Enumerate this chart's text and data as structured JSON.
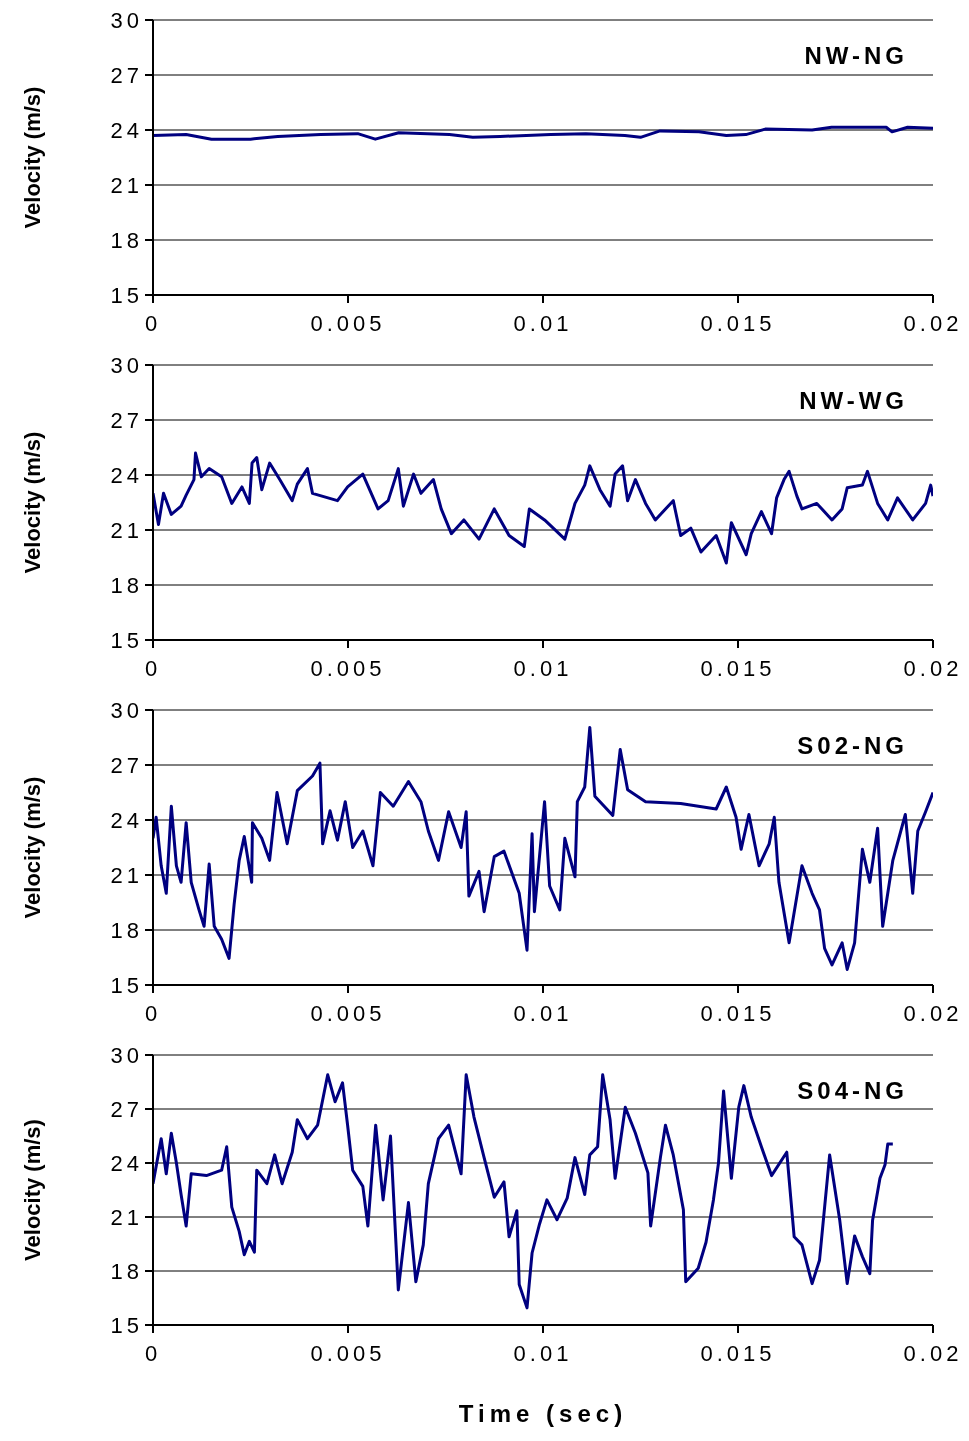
{
  "chart_data": [
    {
      "type": "line",
      "annotations": [
        "NW-NG"
      ],
      "ylabel": "Velocity (m/s)",
      "xlim": [
        0,
        0.02
      ],
      "xticks": [
        0,
        0.005,
        0.01,
        0.015,
        0.02
      ],
      "ylim": [
        15,
        30
      ],
      "yticks": [
        15,
        18,
        21,
        24,
        27,
        30
      ],
      "grid": "y",
      "legend": false,
      "series": [
        {
          "color": "#000080",
          "x": [
            0,
            0.00085,
            0.0015,
            0.0025,
            0.0032,
            0.0043,
            0.00525,
            0.0057,
            0.0063,
            0.0076,
            0.0082,
            0.0089,
            0.0102,
            0.0111,
            0.0121,
            0.0125,
            0.013,
            0.014,
            0.0147,
            0.0152,
            0.0157,
            0.0169,
            0.0174,
            0.0188,
            0.01895,
            0.01935,
            0.02
          ],
          "values": [
            23.7,
            23.75,
            23.5,
            23.5,
            23.65,
            23.75,
            23.8,
            23.5,
            23.85,
            23.75,
            23.6,
            23.65,
            23.75,
            23.8,
            23.7,
            23.6,
            23.95,
            23.9,
            23.7,
            23.75,
            24.05,
            24.0,
            24.15,
            24.15,
            23.9,
            24.15,
            24.1
          ]
        }
      ]
    },
    {
      "type": "line",
      "annotations": [
        "NW-WG"
      ],
      "ylabel": "Velocity (m/s)",
      "xlim": [
        0,
        0.02
      ],
      "xticks": [
        0,
        0.005,
        0.01,
        0.015,
        0.02
      ],
      "ylim": [
        15,
        30
      ],
      "yticks": [
        15,
        18,
        21,
        24,
        27,
        30
      ],
      "grid": "y",
      "legend": false,
      "series": [
        {
          "color": "#000080",
          "x": [
            0,
            0.00014,
            0.00027,
            0.00047,
            0.00072,
            0.00085,
            0.00105,
            0.00109,
            0.00124,
            0.00144,
            0.00176,
            0.00202,
            0.00228,
            0.00247,
            0.00254,
            0.00266,
            0.00279,
            0.00299,
            0.00325,
            0.00357,
            0.0037,
            0.00396,
            0.00409,
            0.00473,
            0.00499,
            0.00538,
            0.00577,
            0.00603,
            0.00629,
            0.00642,
            0.00668,
            0.00687,
            0.00719,
            0.00739,
            0.00765,
            0.00797,
            0.00836,
            0.00875,
            0.00913,
            0.00952,
            0.00965,
            0.01004,
            0.01056,
            0.01082,
            0.01107,
            0.0112,
            0.01146,
            0.01172,
            0.01185,
            0.01204,
            0.01217,
            0.01237,
            0.01263,
            0.01288,
            0.01334,
            0.01353,
            0.01379,
            0.01405,
            0.01444,
            0.0147,
            0.01483,
            0.01521,
            0.01534,
            0.0156,
            0.01586,
            0.01599,
            0.01618,
            0.01631,
            0.01651,
            0.01664,
            0.01702,
            0.01741,
            0.01767,
            0.0178,
            0.01819,
            0.01832,
            0.01858,
            0.01884,
            0.01909,
            0.01948,
            0.01981,
            0.01994,
            0.02
          ],
          "values": [
            23.0,
            21.3,
            23.0,
            21.85,
            22.3,
            22.9,
            23.75,
            25.2,
            23.9,
            24.35,
            23.9,
            22.45,
            23.35,
            22.45,
            24.65,
            24.95,
            23.2,
            24.65,
            23.75,
            22.6,
            23.5,
            24.35,
            23.0,
            22.6,
            23.35,
            24.05,
            22.15,
            22.6,
            24.35,
            22.3,
            24.05,
            23.0,
            23.75,
            22.15,
            20.8,
            21.55,
            20.5,
            22.15,
            20.7,
            20.1,
            22.15,
            21.55,
            20.5,
            22.45,
            23.45,
            24.5,
            23.2,
            22.3,
            24.05,
            24.5,
            22.6,
            23.75,
            22.45,
            21.55,
            22.6,
            20.7,
            21.1,
            19.8,
            20.7,
            19.2,
            21.4,
            19.65,
            20.8,
            22.0,
            20.8,
            22.75,
            23.75,
            24.2,
            22.85,
            22.15,
            22.45,
            21.55,
            22.15,
            23.3,
            23.45,
            24.2,
            22.45,
            21.55,
            22.75,
            21.55,
            22.45,
            23.45,
            22.85
          ]
        }
      ]
    },
    {
      "type": "line",
      "annotations": [
        "S02-NG"
      ],
      "ylabel": "Velocity (m/s)",
      "xlim": [
        0,
        0.02
      ],
      "xticks": [
        0,
        0.005,
        0.01,
        0.015,
        0.02
      ],
      "ylim": [
        15,
        30
      ],
      "yticks": [
        15,
        18,
        21,
        24,
        27,
        30
      ],
      "grid": "y",
      "legend": false,
      "series": [
        {
          "color": "#000080",
          "x": [
            0,
            8e-05,
            0.00021,
            0.00034,
            0.00047,
            0.0006,
            0.00072,
            0.00085,
            0.00098,
            0.00118,
            0.00131,
            0.00144,
            0.00157,
            0.00176,
            0.00195,
            0.00208,
            0.00221,
            0.00234,
            0.00253,
            0.00255,
            0.00279,
            0.00299,
            0.00318,
            0.00344,
            0.0037,
            0.00409,
            0.00428,
            0.00435,
            0.00454,
            0.00473,
            0.00493,
            0.00512,
            0.00538,
            0.00564,
            0.00583,
            0.00616,
            0.00655,
            0.00687,
            0.00706,
            0.00732,
            0.00758,
            0.0079,
            0.00803,
            0.0081,
            0.00836,
            0.00849,
            0.00875,
            0.009,
            0.00939,
            0.00959,
            0.00972,
            0.00978,
            0.01004,
            0.01017,
            0.01043,
            0.01056,
            0.01082,
            0.01088,
            0.01107,
            0.0112,
            0.01133,
            0.01179,
            0.01198,
            0.01217,
            0.01263,
            0.01353,
            0.01444,
            0.0147,
            0.01495,
            0.01508,
            0.01528,
            0.01554,
            0.0158,
            0.01593,
            0.01605,
            0.01631,
            0.01664,
            0.0169,
            0.01709,
            0.01722,
            0.01741,
            0.01767,
            0.0178,
            0.01799,
            0.01819,
            0.01838,
            0.01858,
            0.01871,
            0.01897,
            0.01929,
            0.01948,
            0.01961,
            0.01981,
            0.02
          ],
          "values": [
            23.0,
            24.15,
            21.5,
            20.0,
            24.75,
            21.5,
            20.6,
            23.85,
            20.6,
            19.1,
            18.2,
            21.6,
            18.2,
            17.5,
            16.45,
            19.4,
            21.8,
            23.1,
            20.6,
            23.85,
            23.0,
            21.8,
            25.5,
            22.7,
            25.6,
            26.4,
            27.1,
            22.7,
            24.5,
            22.9,
            25.0,
            22.5,
            23.4,
            21.5,
            25.5,
            24.75,
            26.1,
            25.0,
            23.4,
            21.8,
            24.45,
            22.5,
            24.45,
            19.85,
            21.2,
            19.0,
            22.0,
            22.3,
            20.0,
            16.9,
            23.25,
            19.0,
            25.0,
            20.4,
            19.1,
            23.0,
            20.9,
            25.0,
            25.8,
            29.05,
            25.3,
            24.25,
            27.85,
            25.65,
            25.0,
            24.9,
            24.6,
            25.8,
            24.15,
            22.4,
            24.3,
            21.5,
            22.7,
            24.15,
            20.6,
            17.3,
            21.5,
            20.0,
            19.1,
            17.0,
            16.1,
            17.3,
            15.85,
            17.3,
            22.4,
            20.6,
            23.55,
            18.2,
            21.8,
            24.3,
            20.0,
            23.4,
            24.45,
            25.5
          ]
        }
      ]
    },
    {
      "type": "line",
      "annotations": [
        "S04-NG"
      ],
      "xlabel": "Time (sec)",
      "ylabel": "Velocity (m/s)",
      "xlim": [
        0,
        0.02
      ],
      "xticks": [
        0,
        0.005,
        0.01,
        0.015,
        0.02
      ],
      "ylim": [
        15,
        30
      ],
      "yticks": [
        15,
        18,
        21,
        24,
        27,
        30
      ],
      "grid": "y",
      "legend": false,
      "series": [
        {
          "color": "#000080",
          "x": [
            0,
            0.00021,
            0.00034,
            0.00047,
            0.0006,
            0.00072,
            0.00085,
            0.00098,
            0.00137,
            0.00176,
            0.00189,
            0.00202,
            0.00221,
            0.00234,
            0.00247,
            0.0026,
            0.00266,
            0.00292,
            0.00312,
            0.00331,
            0.00357,
            0.0037,
            0.00396,
            0.00422,
            0.00448,
            0.00467,
            0.00486,
            0.00499,
            0.00512,
            0.00538,
            0.00551,
            0.00571,
            0.0059,
            0.00609,
            0.00629,
            0.00655,
            0.00674,
            0.00693,
            0.00706,
            0.00732,
            0.00758,
            0.0079,
            0.00803,
            0.00823,
            0.00849,
            0.00875,
            0.009,
            0.00913,
            0.00933,
            0.00939,
            0.00959,
            0.00972,
            0.00991,
            0.0101,
            0.01036,
            0.01062,
            0.01082,
            0.01107,
            0.0112,
            0.0114,
            0.01153,
            0.01172,
            0.01185,
            0.01211,
            0.01237,
            0.01269,
            0.01276,
            0.01301,
            0.01314,
            0.01334,
            0.0136,
            0.01366,
            0.01398,
            0.01418,
            0.01437,
            0.0145,
            0.01463,
            0.01483,
            0.01502,
            0.01515,
            0.01534,
            0.0156,
            0.01586,
            0.01625,
            0.01644,
            0.01664,
            0.0169,
            0.01709,
            0.01735,
            0.01761,
            0.0178,
            0.01799,
            0.01819,
            0.01838,
            0.01845,
            0.01864,
            0.01877,
            0.01884,
            0.01897
          ],
          "values": [
            22.85,
            25.35,
            23.4,
            25.65,
            24.0,
            22.25,
            20.5,
            23.4,
            23.3,
            23.6,
            24.9,
            21.55,
            20.2,
            18.9,
            19.65,
            19.05,
            23.6,
            22.85,
            24.45,
            22.85,
            24.6,
            26.4,
            25.35,
            26.1,
            28.9,
            27.4,
            28.45,
            26.1,
            23.6,
            22.7,
            20.5,
            26.1,
            21.95,
            25.5,
            16.95,
            21.8,
            17.4,
            19.45,
            22.85,
            25.35,
            26.1,
            23.4,
            28.9,
            26.55,
            24.3,
            22.1,
            22.95,
            19.9,
            21.35,
            17.25,
            15.95,
            19.0,
            20.6,
            21.95,
            20.85,
            22.05,
            24.3,
            22.25,
            24.45,
            24.9,
            28.9,
            26.4,
            23.15,
            27.1,
            25.65,
            23.45,
            20.5,
            24.3,
            26.1,
            24.45,
            21.4,
            17.4,
            18.15,
            19.6,
            21.95,
            24.0,
            28.0,
            23.15,
            27.1,
            28.3,
            26.55,
            24.9,
            23.3,
            24.6,
            19.9,
            19.45,
            17.3,
            18.6,
            24.45,
            20.8,
            17.3,
            19.95,
            18.8,
            17.85,
            20.8,
            23.15,
            23.9,
            25.05,
            25.05
          ]
        }
      ]
    }
  ]
}
